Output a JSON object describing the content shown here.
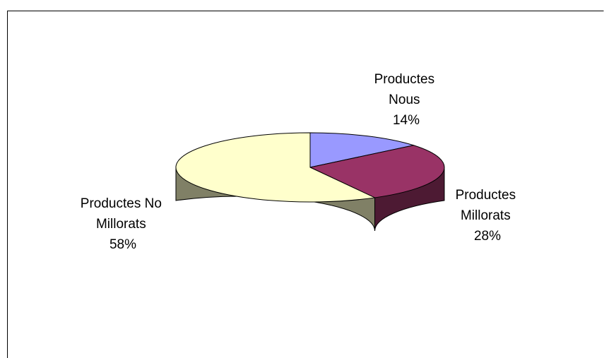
{
  "chart_data": {
    "type": "pie",
    "style": "3d",
    "legend": "none",
    "slices": [
      {
        "label": "Productes Nous",
        "label_lines": [
          "Productes",
          "Nous"
        ],
        "value": 14,
        "value_label": "14%",
        "color": "#9999ff",
        "side_color": "#6b6bb3"
      },
      {
        "label": "Productes Millorats",
        "label_lines": [
          "Productes",
          "Millorats"
        ],
        "value": 28,
        "value_label": "28%",
        "color": "#993366",
        "side_color": "#4d1a33"
      },
      {
        "label": "Productes No Millorats",
        "label_lines": [
          "Productes No",
          "Millorats"
        ],
        "value": 58,
        "value_label": "58%",
        "color": "#ffffcc",
        "side_color": "#808066"
      }
    ]
  }
}
